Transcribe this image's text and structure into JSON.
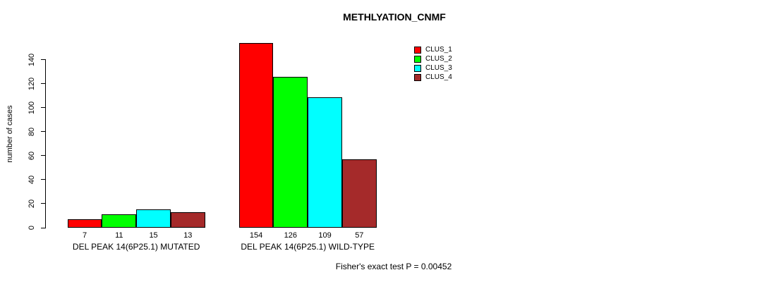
{
  "title": "METHLYATION_CNMF",
  "footer": "Fisher's exact test P = 0.00452",
  "legend": {
    "items": [
      {
        "label": "CLUS_1",
        "color": "#ff0000"
      },
      {
        "label": "CLUS_2",
        "color": "#00ff00"
      },
      {
        "label": "CLUS_3",
        "color": "#00ffff"
      },
      {
        "label": "CLUS_4",
        "color": "#a52a2a"
      }
    ]
  },
  "chart_data": {
    "type": "bar",
    "title": "METHLYATION_CNMF",
    "xlabel": "",
    "ylabel": "number of cases",
    "categories": [
      "DEL PEAK 14(6P25.1) MUTATED",
      "DEL PEAK 14(6P25.1) WILD-TYPE"
    ],
    "series": [
      {
        "name": "CLUS_1",
        "color": "#ff0000",
        "values": [
          7,
          154
        ]
      },
      {
        "name": "CLUS_2",
        "color": "#00ff00",
        "values": [
          11,
          126
        ]
      },
      {
        "name": "CLUS_3",
        "color": "#00ffff",
        "values": [
          15,
          109
        ]
      },
      {
        "name": "CLUS_4",
        "color": "#a52a2a",
        "values": [
          13,
          57
        ]
      }
    ],
    "bar_value_labels": [
      [
        7,
        11,
        15,
        13
      ],
      [
        154,
        126,
        109,
        57
      ]
    ],
    "yticks": [
      0,
      20,
      40,
      60,
      80,
      100,
      120,
      140
    ],
    "ylim": [
      0,
      140
    ],
    "grid": false,
    "legend_position": "top-right",
    "annotation": "Fisher's exact test P = 0.00452"
  }
}
